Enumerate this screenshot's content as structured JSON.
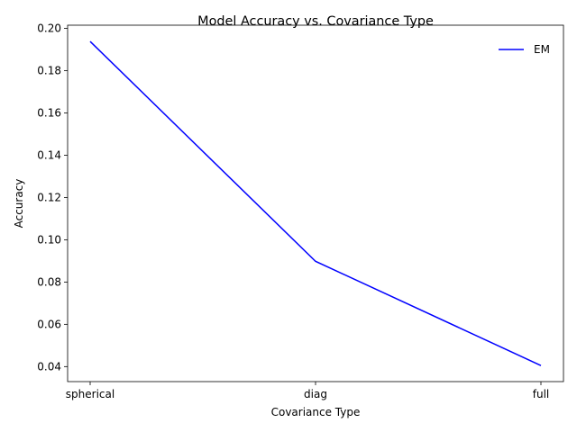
{
  "chart_data": {
    "type": "line",
    "title": "Model Accuracy vs. Covariance Type",
    "xlabel": "Covariance Type",
    "ylabel": "Accuracy",
    "categories": [
      "spherical",
      "diag",
      "full"
    ],
    "series": [
      {
        "name": "EM",
        "values": [
          0.1938,
          0.0898,
          0.0405
        ],
        "color": "#0000ff"
      }
    ],
    "ylim": [
      0.0329,
      0.2015
    ],
    "yticks": [
      0.04,
      0.06,
      0.08,
      0.1,
      0.12,
      0.14,
      0.16,
      0.18,
      0.2
    ],
    "ytick_labels": [
      "0.04",
      "0.06",
      "0.08",
      "0.10",
      "0.12",
      "0.14",
      "0.16",
      "0.18",
      "0.20"
    ],
    "grid": false,
    "legend_position": "top-right"
  }
}
